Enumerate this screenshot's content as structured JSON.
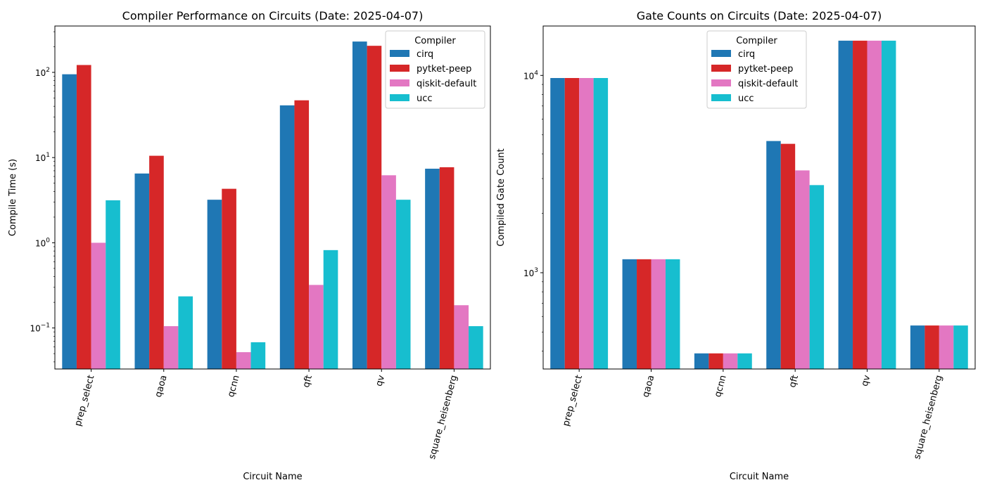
{
  "chart_data": [
    {
      "type": "bar",
      "title": "Compiler Performance on Circuits (Date: 2025-04-07)",
      "xlabel": "Circuit Name",
      "ylabel": "Compile Time (s)",
      "yscale": "log",
      "ylim": [
        0.033,
        350
      ],
      "yticks": [
        {
          "value": 0.1,
          "base": "10",
          "exp": "−1"
        },
        {
          "value": 1,
          "base": "10",
          "exp": "0"
        },
        {
          "value": 10,
          "base": "10",
          "exp": "1"
        },
        {
          "value": 100,
          "base": "10",
          "exp": "2"
        }
      ],
      "categories": [
        "prep_select",
        "qaoa",
        "qcnn",
        "qft",
        "qv",
        "square_heisenberg"
      ],
      "series": [
        {
          "name": "cirq",
          "color": "#1f77b4",
          "values": [
            95,
            6.5,
            3.2,
            41,
            230,
            7.4
          ]
        },
        {
          "name": "pytket-peep",
          "color": "#d62728",
          "values": [
            122,
            10.5,
            4.3,
            47,
            205,
            7.7
          ]
        },
        {
          "name": "qiskit-default",
          "color": "#e377c2",
          "values": [
            1.0,
            0.105,
            0.052,
            0.32,
            6.2,
            0.185
          ]
        },
        {
          "name": "ucc",
          "color": "#17becf",
          "values": [
            3.15,
            0.235,
            0.068,
            0.82,
            3.2,
            0.105
          ]
        }
      ],
      "legend": {
        "title": "Compiler",
        "placement": "top-right"
      },
      "grid": false
    },
    {
      "type": "bar",
      "title": "Gate Counts on Circuits (Date: 2025-04-07)",
      "xlabel": "Circuit Name",
      "ylabel": "Compiled Gate Count",
      "yscale": "log",
      "ylim": [
        325,
        17800
      ],
      "yticks": [
        {
          "value": 1000,
          "base": "10",
          "exp": "3"
        },
        {
          "value": 10000,
          "base": "10",
          "exp": "4"
        }
      ],
      "categories": [
        "prep_select",
        "qaoa",
        "qcnn",
        "qft",
        "qv",
        "square_heisenberg"
      ],
      "series": [
        {
          "name": "cirq",
          "color": "#1f77b4",
          "values": [
            9700,
            1170,
            390,
            4650,
            15000,
            540
          ]
        },
        {
          "name": "pytket-peep",
          "color": "#d62728",
          "values": [
            9700,
            1170,
            390,
            4500,
            15000,
            540
          ]
        },
        {
          "name": "qiskit-default",
          "color": "#e377c2",
          "values": [
            9700,
            1170,
            390,
            3300,
            15000,
            540
          ]
        },
        {
          "name": "ucc",
          "color": "#17becf",
          "values": [
            9700,
            1170,
            390,
            2780,
            15000,
            540
          ]
        }
      ],
      "legend": {
        "title": "Compiler",
        "placement": "top-center"
      },
      "grid": false
    }
  ]
}
